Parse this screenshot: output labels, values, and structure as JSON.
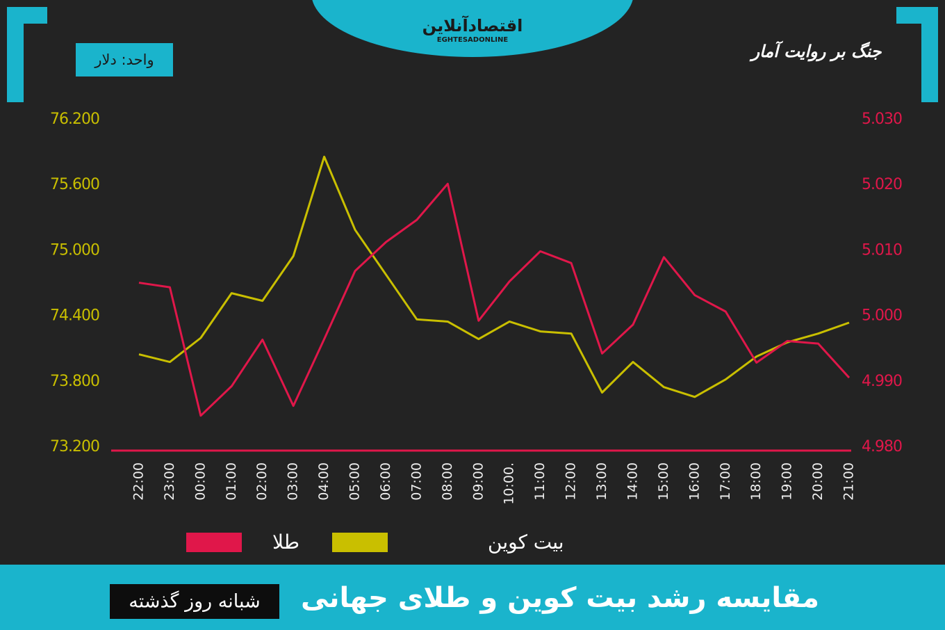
{
  "header": {
    "logo": "اقتصادآنلاین",
    "logo_latin": "EGHTESADONLINE",
    "tagline": "جنگ بر روایت آمار"
  },
  "chart_data": {
    "type": "line",
    "title": "مقایسه رشد بیت کوین و طلای جهانی",
    "subtitle": "شبانه روز گذشته",
    "unit_label": "واحد: دلار",
    "categories": [
      "22:00",
      "23:00",
      "00:00",
      "01:00",
      "02:00",
      "03:00",
      "04:00",
      "05:00",
      "06:00",
      "07:00",
      "08:00",
      "09:00",
      "10:00.",
      "11:00",
      "12:00",
      "13:00",
      "14:00",
      "15:00",
      "16:00",
      "17:00",
      "18:00",
      "19:00",
      "20:00",
      "21:00"
    ],
    "series": [
      {
        "name": "بیت کوین",
        "color": "#c9bf00",
        "axis": "y",
        "values": [
          74050,
          73980,
          74200,
          74610,
          74540,
          74950,
          75860,
          75190,
          74780,
          74370,
          74350,
          74190,
          74350,
          74260,
          74240,
          73700,
          73980,
          73750,
          73660,
          73820,
          74030,
          74160,
          74240,
          74340
        ]
      },
      {
        "name": "طلا",
        "color": "#e0174a",
        "axis": "y2",
        "values": [
          5005.1,
          5004.4,
          4984.8,
          4989.3,
          4996.4,
          4986.3,
          4996.5,
          5006.9,
          5011.3,
          5014.7,
          5020.2,
          4999.3,
          5005.3,
          5009.9,
          5008.1,
          4994.3,
          4998.7,
          5009.0,
          5003.2,
          5000.7,
          4992.9,
          4996.2,
          4995.8,
          4990.6
        ]
      }
    ],
    "ylim": [
      73200,
      76200
    ],
    "yticks": [
      {
        "value": 73200,
        "label": "73.200"
      },
      {
        "value": 73800,
        "label": "73.800"
      },
      {
        "value": 74400,
        "label": "74.400"
      },
      {
        "value": 75000,
        "label": "75.000"
      },
      {
        "value": 75600,
        "label": "75.600"
      },
      {
        "value": 76200,
        "label": "76.200"
      }
    ],
    "y2lim": [
      4980,
      5030
    ],
    "y2ticks": [
      {
        "value": 4980,
        "label": "4.980"
      },
      {
        "value": 4990,
        "label": "4.990"
      },
      {
        "value": 5000,
        "label": "5.000"
      },
      {
        "value": 5010,
        "label": "5.010"
      },
      {
        "value": 5020,
        "label": "5.020"
      },
      {
        "value": 5030,
        "label": "5.030"
      }
    ],
    "grid": false
  }
}
